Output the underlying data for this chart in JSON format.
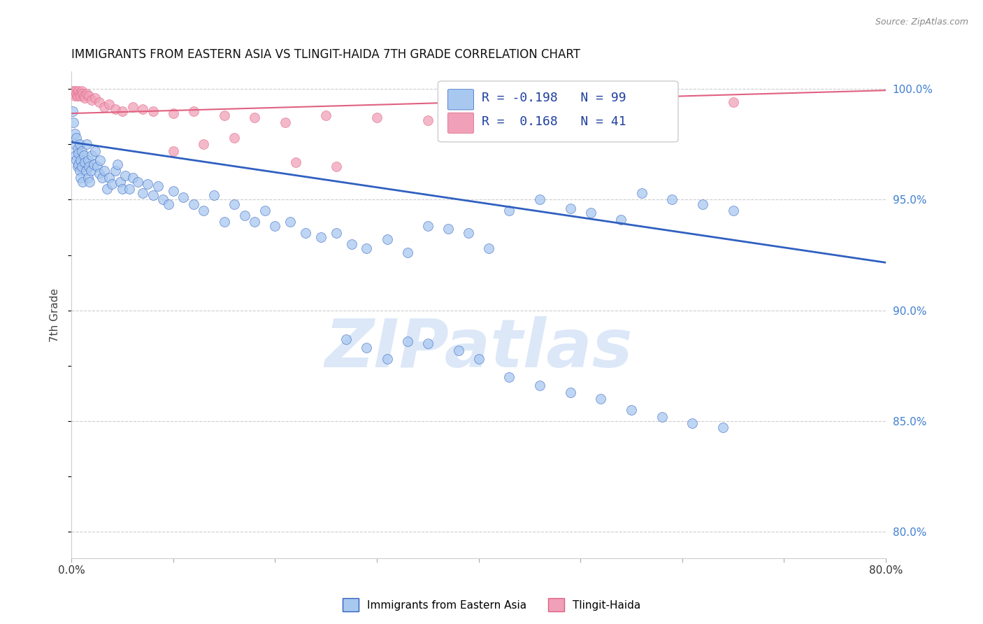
{
  "title": "IMMIGRANTS FROM EASTERN ASIA VS TLINGIT-HAIDA 7TH GRADE CORRELATION CHART",
  "source": "Source: ZipAtlas.com",
  "ylabel": "7th Grade",
  "legend_label1": "Immigrants from Eastern Asia",
  "legend_label2": "Tlingit-Haida",
  "R1": -0.198,
  "N1": 99,
  "R2": 0.168,
  "N2": 41,
  "xlim": [
    0.0,
    0.8
  ],
  "ylim": [
    0.788,
    1.008
  ],
  "xticks": [
    0.0,
    0.1,
    0.2,
    0.3,
    0.4,
    0.5,
    0.6,
    0.7,
    0.8
  ],
  "xticklabels": [
    "0.0%",
    "",
    "",
    "",
    "",
    "",
    "",
    "",
    "80.0%"
  ],
  "yticks_right": [
    0.8,
    0.85,
    0.9,
    0.95,
    1.0
  ],
  "yticklabels_right": [
    "80.0%",
    "85.0%",
    "90.0%",
    "95.0%",
    "100.0%"
  ],
  "color_blue": "#A8C8F0",
  "color_pink": "#F0A0B8",
  "line_color_blue": "#3060C0",
  "line_color_pink": "#E06080",
  "watermark_color": "#DCE8F8",
  "blue_intercept": 0.976,
  "blue_slope": -0.068,
  "pink_intercept": 0.989,
  "pink_slope": 0.013,
  "blue_x": [
    0.001,
    0.002,
    0.003,
    0.003,
    0.004,
    0.005,
    0.005,
    0.006,
    0.006,
    0.007,
    0.007,
    0.008,
    0.008,
    0.009,
    0.009,
    0.01,
    0.01,
    0.011,
    0.012,
    0.013,
    0.014,
    0.015,
    0.016,
    0.016,
    0.017,
    0.018,
    0.019,
    0.02,
    0.022,
    0.023,
    0.025,
    0.027,
    0.028,
    0.03,
    0.032,
    0.035,
    0.037,
    0.04,
    0.043,
    0.045,
    0.048,
    0.05,
    0.053,
    0.057,
    0.06,
    0.065,
    0.07,
    0.075,
    0.08,
    0.085,
    0.09,
    0.095,
    0.1,
    0.11,
    0.12,
    0.13,
    0.14,
    0.15,
    0.16,
    0.17,
    0.18,
    0.19,
    0.2,
    0.215,
    0.23,
    0.245,
    0.26,
    0.275,
    0.29,
    0.31,
    0.33,
    0.35,
    0.37,
    0.39,
    0.41,
    0.43,
    0.46,
    0.49,
    0.51,
    0.54,
    0.56,
    0.59,
    0.62,
    0.65,
    0.27,
    0.29,
    0.31,
    0.33,
    0.35,
    0.38,
    0.4,
    0.43,
    0.46,
    0.49,
    0.52,
    0.55,
    0.58,
    0.61,
    0.64
  ],
  "blue_y": [
    0.99,
    0.985,
    0.98,
    0.975,
    0.97,
    0.968,
    0.978,
    0.965,
    0.973,
    0.966,
    0.971,
    0.963,
    0.975,
    0.968,
    0.96,
    0.972,
    0.965,
    0.958,
    0.97,
    0.967,
    0.963,
    0.975,
    0.968,
    0.96,
    0.965,
    0.958,
    0.963,
    0.97,
    0.966,
    0.972,
    0.965,
    0.962,
    0.968,
    0.96,
    0.963,
    0.955,
    0.96,
    0.957,
    0.963,
    0.966,
    0.958,
    0.955,
    0.961,
    0.955,
    0.96,
    0.958,
    0.953,
    0.957,
    0.952,
    0.956,
    0.95,
    0.948,
    0.954,
    0.951,
    0.948,
    0.945,
    0.952,
    0.94,
    0.948,
    0.943,
    0.94,
    0.945,
    0.938,
    0.94,
    0.935,
    0.933,
    0.935,
    0.93,
    0.928,
    0.932,
    0.926,
    0.938,
    0.937,
    0.935,
    0.928,
    0.945,
    0.95,
    0.946,
    0.944,
    0.941,
    0.953,
    0.95,
    0.948,
    0.945,
    0.887,
    0.883,
    0.878,
    0.886,
    0.885,
    0.882,
    0.878,
    0.87,
    0.866,
    0.863,
    0.86,
    0.855,
    0.852,
    0.849,
    0.847
  ],
  "pink_x": [
    0.001,
    0.002,
    0.003,
    0.004,
    0.005,
    0.006,
    0.007,
    0.008,
    0.009,
    0.01,
    0.011,
    0.012,
    0.013,
    0.015,
    0.017,
    0.02,
    0.023,
    0.027,
    0.032,
    0.037,
    0.043,
    0.05,
    0.06,
    0.07,
    0.08,
    0.1,
    0.12,
    0.15,
    0.18,
    0.21,
    0.25,
    0.3,
    0.35,
    0.45,
    0.55,
    0.65,
    0.1,
    0.13,
    0.16,
    0.22,
    0.26
  ],
  "pink_y": [
    0.999,
    0.998,
    0.997,
    0.999,
    0.998,
    0.997,
    0.999,
    0.998,
    0.997,
    0.999,
    0.998,
    0.997,
    0.996,
    0.998,
    0.997,
    0.995,
    0.996,
    0.994,
    0.992,
    0.993,
    0.991,
    0.99,
    0.992,
    0.991,
    0.99,
    0.989,
    0.99,
    0.988,
    0.987,
    0.985,
    0.988,
    0.987,
    0.986,
    0.99,
    0.992,
    0.994,
    0.972,
    0.975,
    0.978,
    0.967,
    0.965
  ]
}
